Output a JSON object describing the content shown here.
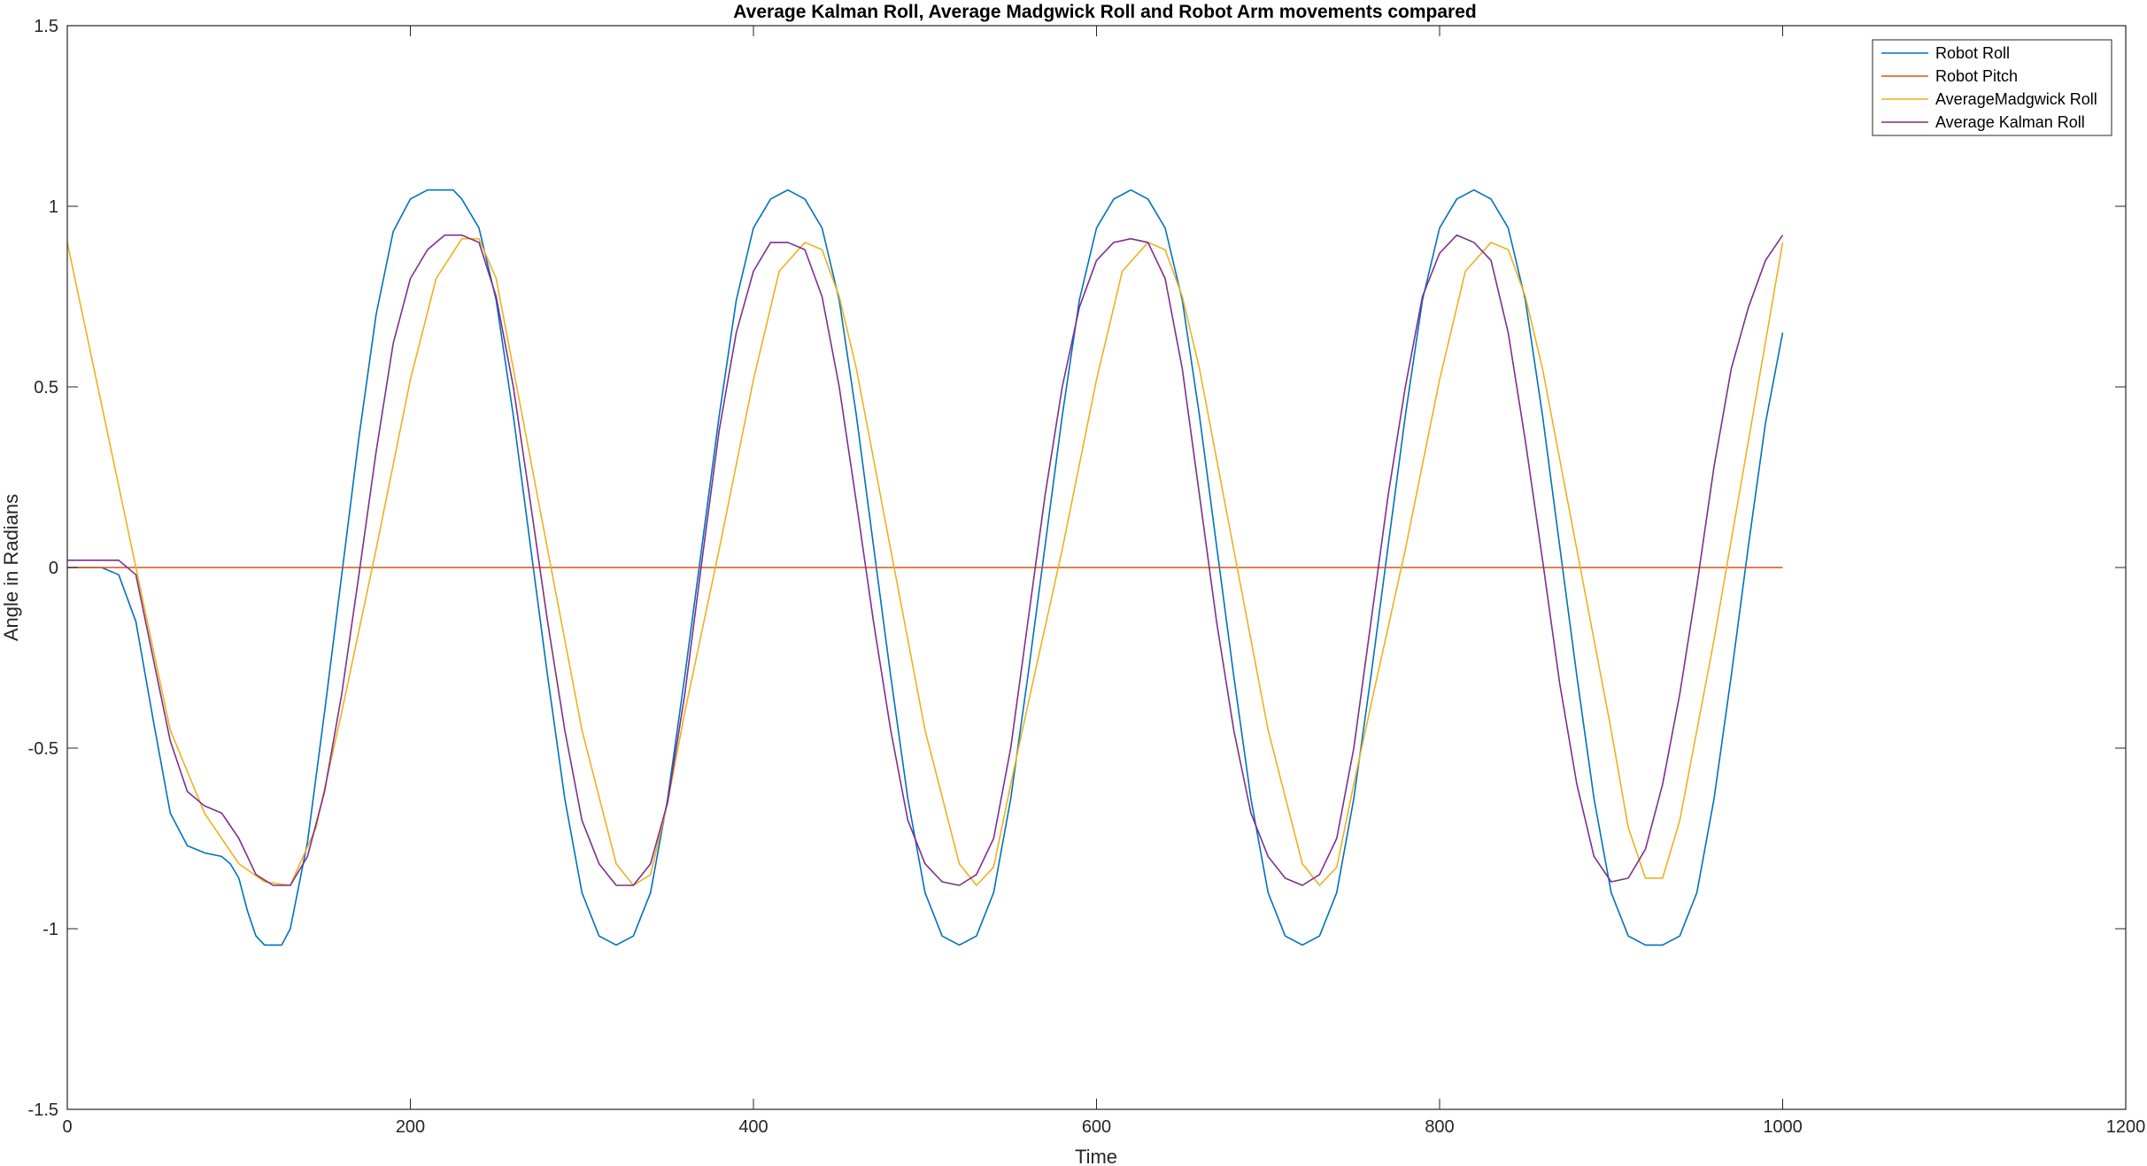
{
  "chart_data": {
    "type": "line",
    "title": "Average Kalman Roll, Average Madgwick Roll and Robot Arm movements compared",
    "xlabel": "Time",
    "ylabel": "Angle in Radians",
    "xlim": [
      0,
      1200
    ],
    "ylim": [
      -1.5,
      1.5
    ],
    "xticks": [
      0,
      200,
      400,
      600,
      800,
      1000,
      1200
    ],
    "yticks": [
      -1.5,
      -1,
      -0.5,
      0,
      0.5,
      1,
      1.5
    ],
    "xtick_labels": [
      "0",
      "200",
      "400",
      "600",
      "800",
      "1000",
      "1200"
    ],
    "ytick_labels": [
      "-1.5",
      "-1",
      "-0.5",
      "0",
      "0.5",
      "1",
      "1.5"
    ],
    "grid": false,
    "legend_position": "top-right",
    "series": [
      {
        "name": "Robot Roll",
        "color": "#0072BD",
        "x": [
          0,
          20,
          30,
          40,
          50,
          60,
          70,
          80,
          90,
          95,
          100,
          105,
          110,
          115,
          120,
          125,
          130,
          140,
          150,
          160,
          170,
          180,
          190,
          200,
          210,
          215,
          220,
          225,
          230,
          240,
          250,
          260,
          270,
          280,
          290,
          300,
          310,
          320,
          330,
          340,
          350,
          360,
          370,
          380,
          390,
          400,
          410,
          420,
          430,
          440,
          450,
          460,
          470,
          480,
          490,
          500,
          510,
          520,
          530,
          540,
          550,
          560,
          570,
          580,
          590,
          600,
          610,
          620,
          630,
          640,
          650,
          660,
          670,
          680,
          690,
          700,
          710,
          720,
          730,
          740,
          750,
          760,
          770,
          780,
          790,
          800,
          810,
          820,
          830,
          840,
          850,
          860,
          870,
          880,
          890,
          900,
          910,
          920,
          930,
          940,
          950,
          960,
          970,
          980,
          990,
          1000
        ],
        "y": [
          0,
          0,
          -0.02,
          -0.15,
          -0.42,
          -0.68,
          -0.77,
          -0.79,
          -0.8,
          -0.82,
          -0.86,
          -0.95,
          -1.02,
          -1.045,
          -1.045,
          -1.045,
          -1.0,
          -0.76,
          -0.4,
          -0.02,
          0.36,
          0.7,
          0.93,
          1.02,
          1.045,
          1.045,
          1.045,
          1.045,
          1.02,
          0.94,
          0.74,
          0.42,
          0.06,
          -0.3,
          -0.64,
          -0.9,
          -1.02,
          -1.045,
          -1.02,
          -0.9,
          -0.64,
          -0.3,
          0.06,
          0.42,
          0.74,
          0.94,
          1.02,
          1.045,
          1.02,
          0.94,
          0.74,
          0.42,
          0.06,
          -0.3,
          -0.64,
          -0.9,
          -1.02,
          -1.045,
          -1.02,
          -0.9,
          -0.64,
          -0.3,
          0.06,
          0.42,
          0.74,
          0.94,
          1.02,
          1.045,
          1.02,
          0.94,
          0.74,
          0.42,
          0.06,
          -0.3,
          -0.64,
          -0.9,
          -1.02,
          -1.045,
          -1.02,
          -0.9,
          -0.64,
          -0.3,
          0.06,
          0.42,
          0.74,
          0.94,
          1.02,
          1.045,
          1.02,
          0.94,
          0.74,
          0.42,
          0.06,
          -0.3,
          -0.64,
          -0.9,
          -1.02,
          -1.045,
          -1.045,
          -1.02,
          -0.9,
          -0.64,
          -0.3,
          0.06,
          0.4,
          0.65
        ]
      },
      {
        "name": "Robot Pitch",
        "color": "#D95319",
        "x": [
          0,
          1000
        ],
        "y": [
          0,
          0
        ]
      },
      {
        "name": "AverageMadgwick Roll",
        "color": "#EDB120",
        "x": [
          0,
          20,
          40,
          60,
          80,
          100,
          115,
          130,
          145,
          160,
          180,
          200,
          215,
          230,
          240,
          250,
          260,
          280,
          300,
          320,
          330,
          340,
          350,
          360,
          380,
          400,
          415,
          430,
          440,
          450,
          460,
          480,
          500,
          520,
          530,
          540,
          550,
          560,
          580,
          600,
          615,
          630,
          640,
          650,
          660,
          680,
          700,
          720,
          730,
          740,
          750,
          760,
          780,
          800,
          815,
          830,
          840,
          850,
          860,
          880,
          900,
          910,
          920,
          930,
          940,
          960,
          980,
          1000
        ],
        "y": [
          0.9,
          0.45,
          0.0,
          -0.45,
          -0.68,
          -0.82,
          -0.87,
          -0.88,
          -0.72,
          -0.4,
          0.05,
          0.52,
          0.8,
          0.91,
          0.91,
          0.8,
          0.55,
          0.05,
          -0.45,
          -0.82,
          -0.88,
          -0.85,
          -0.65,
          -0.4,
          0.05,
          0.52,
          0.82,
          0.9,
          0.88,
          0.75,
          0.55,
          0.05,
          -0.45,
          -0.82,
          -0.88,
          -0.83,
          -0.6,
          -0.38,
          0.05,
          0.52,
          0.82,
          0.9,
          0.88,
          0.75,
          0.55,
          0.05,
          -0.45,
          -0.82,
          -0.88,
          -0.83,
          -0.6,
          -0.38,
          0.05,
          0.52,
          0.82,
          0.9,
          0.88,
          0.75,
          0.55,
          0.05,
          -0.45,
          -0.72,
          -0.86,
          -0.86,
          -0.7,
          -0.2,
          0.35,
          0.9
        ]
      },
      {
        "name": "Average Kalman Roll",
        "color": "#7E2F8E",
        "x": [
          0,
          20,
          30,
          40,
          50,
          60,
          70,
          80,
          90,
          100,
          110,
          120,
          130,
          140,
          150,
          160,
          170,
          180,
          190,
          200,
          210,
          220,
          230,
          240,
          250,
          260,
          270,
          280,
          290,
          300,
          310,
          320,
          330,
          340,
          350,
          360,
          370,
          380,
          390,
          400,
          410,
          420,
          430,
          440,
          450,
          460,
          470,
          480,
          490,
          500,
          510,
          520,
          530,
          540,
          550,
          560,
          570,
          580,
          590,
          600,
          610,
          620,
          630,
          640,
          650,
          660,
          670,
          680,
          690,
          700,
          710,
          720,
          730,
          740,
          750,
          760,
          770,
          780,
          790,
          800,
          810,
          820,
          830,
          840,
          850,
          860,
          870,
          880,
          890,
          900,
          910,
          920,
          930,
          940,
          950,
          960,
          970,
          980,
          990,
          1000
        ],
        "y": [
          0.02,
          0.02,
          0.02,
          -0.02,
          -0.25,
          -0.48,
          -0.62,
          -0.66,
          -0.68,
          -0.75,
          -0.85,
          -0.88,
          -0.88,
          -0.8,
          -0.62,
          -0.35,
          -0.02,
          0.32,
          0.62,
          0.8,
          0.88,
          0.92,
          0.92,
          0.9,
          0.75,
          0.5,
          0.18,
          -0.15,
          -0.45,
          -0.7,
          -0.82,
          -0.88,
          -0.88,
          -0.82,
          -0.65,
          -0.35,
          0.02,
          0.38,
          0.65,
          0.82,
          0.9,
          0.9,
          0.88,
          0.75,
          0.5,
          0.18,
          -0.15,
          -0.45,
          -0.7,
          -0.82,
          -0.87,
          -0.88,
          -0.85,
          -0.75,
          -0.5,
          -0.15,
          0.2,
          0.5,
          0.72,
          0.85,
          0.9,
          0.91,
          0.9,
          0.8,
          0.55,
          0.2,
          -0.15,
          -0.45,
          -0.68,
          -0.8,
          -0.86,
          -0.88,
          -0.85,
          -0.75,
          -0.5,
          -0.15,
          0.2,
          0.5,
          0.75,
          0.87,
          0.92,
          0.9,
          0.85,
          0.65,
          0.35,
          0.02,
          -0.32,
          -0.6,
          -0.8,
          -0.87,
          -0.86,
          -0.78,
          -0.6,
          -0.35,
          -0.05,
          0.28,
          0.55,
          0.72,
          0.85,
          0.92
        ]
      }
    ]
  }
}
